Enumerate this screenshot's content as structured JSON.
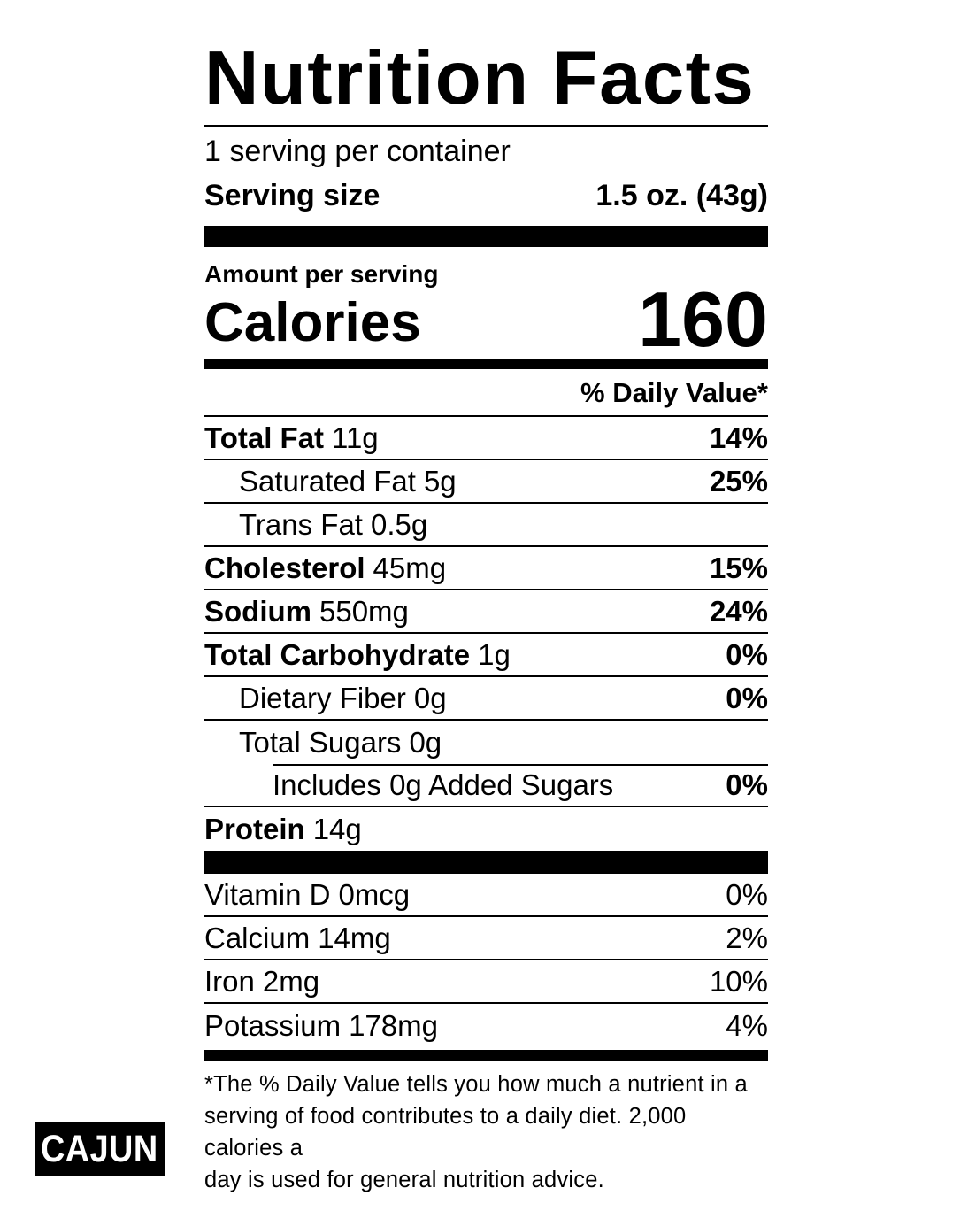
{
  "label": {
    "title": "Nutrition Facts",
    "servings_per_container": "1 serving per container",
    "serving_size": {
      "label": "Serving size",
      "value": "1.5 oz. (43g)"
    },
    "amount_per_serving": "Amount per serving",
    "calories": {
      "label": "Calories",
      "value": "160"
    },
    "daily_value_header": "% Daily Value*",
    "nutrients": [
      {
        "name": "Total Fat",
        "amount": "11g",
        "dv": "14%"
      },
      {
        "name": "Saturated Fat",
        "amount": "5g",
        "dv": "25%"
      },
      {
        "name": "Trans Fat",
        "amount": "0.5g",
        "dv": ""
      },
      {
        "name": "Cholesterol",
        "amount": "45mg",
        "dv": "15%"
      },
      {
        "name": "Sodium",
        "amount": "550mg",
        "dv": "24%"
      },
      {
        "name": "Total Carbohydrate",
        "amount": "1g",
        "dv": "0%"
      },
      {
        "name": "Dietary Fiber",
        "amount": "0g",
        "dv": "0%"
      },
      {
        "name": "Total Sugars",
        "amount": "0g",
        "dv": ""
      },
      {
        "name": "Includes 0g Added Sugars",
        "amount": "",
        "dv": "0%"
      },
      {
        "name": "Protein",
        "amount": "14g",
        "dv": ""
      }
    ],
    "vitamins": [
      {
        "name": "Vitamin D",
        "amount": "0mcg",
        "dv": "0%"
      },
      {
        "name": "Calcium",
        "amount": "14mg",
        "dv": "2%"
      },
      {
        "name": "Iron",
        "amount": "2mg",
        "dv": "10%"
      },
      {
        "name": "Potassium",
        "amount": "178mg",
        "dv": "4%"
      }
    ],
    "footnote_lines": [
      "*The % Daily Value tells you how much a nutrient in a",
      "serving of food contributes to a daily diet. 2,000 calories a",
      "day is used for general nutrition advice."
    ]
  },
  "badge": {
    "text": "CAJUN"
  },
  "colors": {
    "ink": "#000000",
    "background": "#ffffff"
  }
}
